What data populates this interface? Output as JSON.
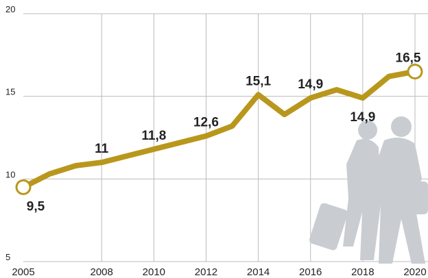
{
  "chart_data": {
    "type": "line",
    "x": [
      2005,
      2006,
      2007,
      2008,
      2009,
      2010,
      2011,
      2012,
      2013,
      2014,
      2015,
      2016,
      2017,
      2018,
      2019,
      2020
    ],
    "series": [
      {
        "color": "#b8971c",
        "values": [
          9.5,
          10.3,
          10.8,
          11,
          11.4,
          11.8,
          12.2,
          12.6,
          13.2,
          15.1,
          13.9,
          14.9,
          15.4,
          14.9,
          16.2,
          16.5
        ],
        "value_labels": [
          "9,5",
          null,
          null,
          "11",
          null,
          "11,8",
          null,
          "12,6",
          null,
          "15,1",
          null,
          "14,9",
          null,
          "14,9",
          null,
          "16,5"
        ]
      }
    ],
    "xlim": [
      2005,
      2020
    ],
    "xticks": [
      2005,
      2008,
      2010,
      2012,
      2014,
      2016,
      2018,
      2020
    ],
    "ylim": [
      5,
      20
    ],
    "yticks": [
      5,
      10,
      15,
      20
    ],
    "grid": true
  }
}
